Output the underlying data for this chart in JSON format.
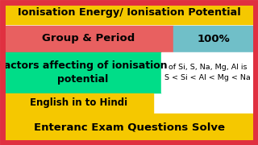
{
  "background_color": "#ffffff",
  "border_color": "#e03040",
  "border_width": 5,
  "title_text": "Ionisation Energy/ Ionisation Potential",
  "title_bg": "#f5c800",
  "title_color": "#000000",
  "row2_left_text": "Group & Period",
  "row2_left_bg": "#e86060",
  "row2_right_text": "100%",
  "row2_right_bg": "#70bfc8",
  "row3_left_text": "Factors affecting of ionisation\npotential",
  "row3_left_bg": "#00dd88",
  "row3_right_text": "of Si, S, Na, Mg, Al is\nS < Si < Al < Mg < Na",
  "row3_right_color": "#000000",
  "row4_text": "English in to Hindi",
  "row4_bg": "#f5c800",
  "row4_color": "#000000",
  "row5_text": "Enteranc Exam Questions Solve",
  "row5_bg": "#f5c800",
  "row5_color": "#000000",
  "fig_w": 3.2,
  "fig_h": 1.8,
  "dpi": 100
}
